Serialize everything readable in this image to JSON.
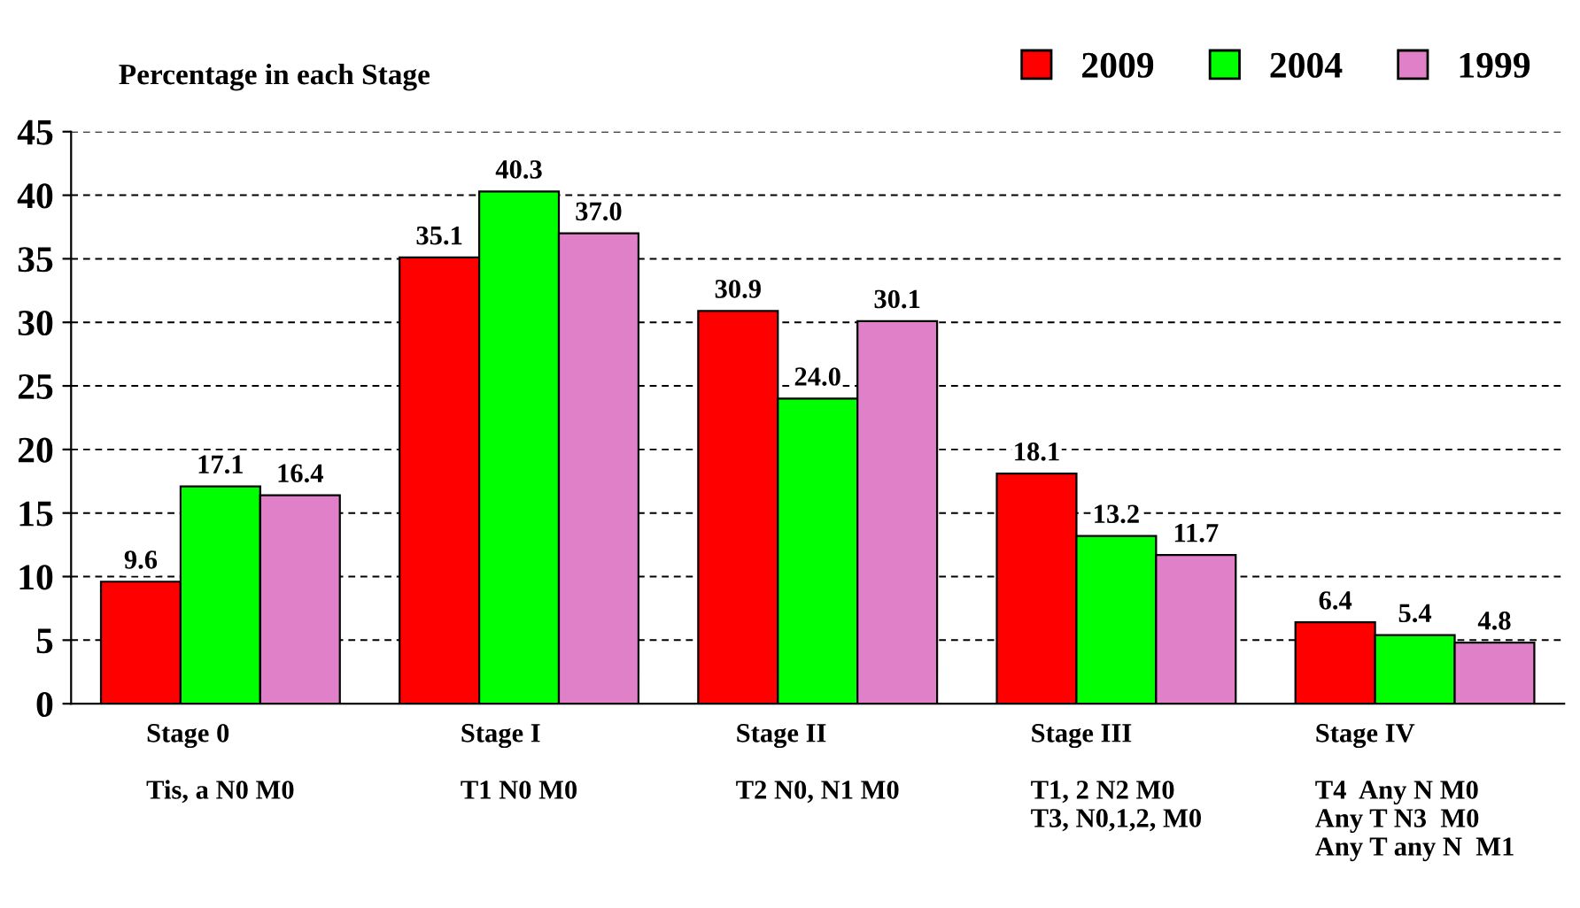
{
  "chart_data": {
    "type": "bar",
    "ylabel": "Percentage in each Stage",
    "categories": [
      "Stage 0\n\nTis, a N0 M0",
      "Stage I\n\nT1 N0 M0",
      "Stage II\n\nT2 N0, N1 M0",
      "Stage III\n\nT1, 2 N2 M0\nT3, N0,1,2, M0",
      "Stage IV\n\nT4  Any N M0\nAny T N3  M0\nAny T any N  M1"
    ],
    "series": [
      {
        "name": "2009",
        "color": "#ff0000",
        "values": [
          9.6,
          35.1,
          30.9,
          18.1,
          6.4
        ],
        "value_labels": [
          "9.6",
          "35.1",
          "30.9",
          "18.1",
          "6.4"
        ]
      },
      {
        "name": "2004",
        "color": "#00ff00",
        "values": [
          17.1,
          40.3,
          24.0,
          13.2,
          5.4
        ],
        "value_labels": [
          "17.1",
          "40.3",
          "24.0",
          "13.2",
          "5.4"
        ]
      },
      {
        "name": "1999",
        "color": "#e080c8",
        "values": [
          16.4,
          37.0,
          30.1,
          11.7,
          4.8
        ],
        "value_labels": [
          "16.4",
          "37.0",
          "30.1",
          "11.7",
          "4.8"
        ]
      }
    ],
    "ylim": [
      0,
      45
    ],
    "yticks": [
      0,
      5,
      10,
      15,
      20,
      25,
      30,
      35,
      40,
      45
    ],
    "grid": "y",
    "legend": "top right"
  }
}
